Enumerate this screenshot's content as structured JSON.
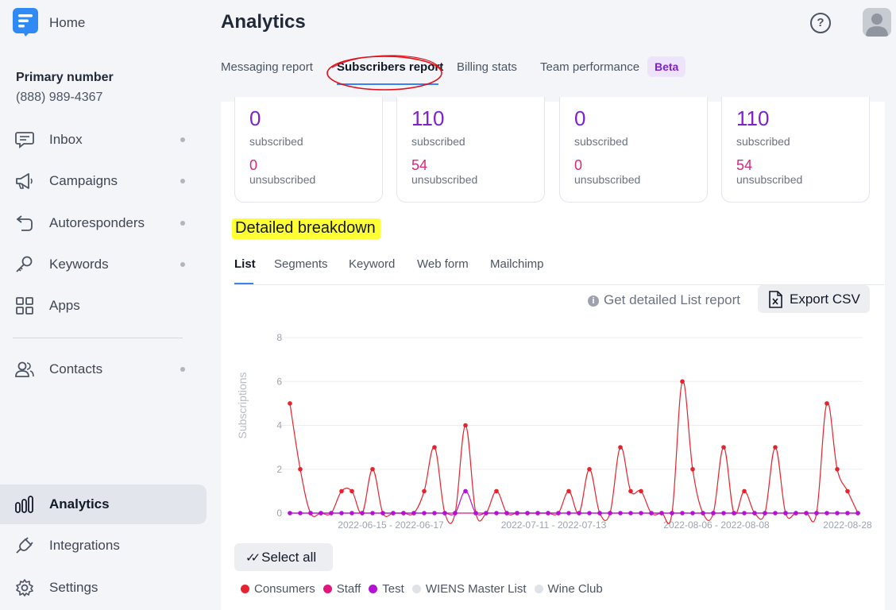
{
  "sidebar": {
    "home_label": "Home",
    "primary_number_title": "Primary number",
    "primary_number": "(888) 989-4367",
    "items": [
      {
        "label": "Inbox",
        "icon": "inbox-icon",
        "dot": true
      },
      {
        "label": "Campaigns",
        "icon": "megaphone-icon",
        "dot": true
      },
      {
        "label": "Autoresponders",
        "icon": "autoresponder-icon",
        "dot": true
      },
      {
        "label": "Keywords",
        "icon": "key-icon",
        "dot": true
      },
      {
        "label": "Apps",
        "icon": "apps-grid-icon",
        "dot": false
      },
      {
        "label": "Contacts",
        "icon": "contacts-icon",
        "dot": true
      },
      {
        "label": "Analytics",
        "icon": "analytics-icon",
        "dot": false,
        "active": true
      },
      {
        "label": "Integrations",
        "icon": "plug-icon",
        "dot": false
      },
      {
        "label": "Settings",
        "icon": "gear-icon",
        "dot": false
      }
    ]
  },
  "header": {
    "title": "Analytics",
    "help_label": "?"
  },
  "tabs": [
    {
      "label": "Messaging report"
    },
    {
      "label": "Subscribers report",
      "active": true
    },
    {
      "label": "Billing stats"
    },
    {
      "label": "Team performance"
    }
  ],
  "beta_badge": "Beta",
  "stats": [
    {
      "subscribed": "0",
      "subscribed_label": "subscribed",
      "unsubscribed": "0",
      "unsubscribed_label": "unsubscribed"
    },
    {
      "subscribed": "110",
      "subscribed_label": "subscribed",
      "unsubscribed": "54",
      "unsubscribed_label": "unsubscribed"
    },
    {
      "subscribed": "0",
      "subscribed_label": "subscribed",
      "unsubscribed": "0",
      "unsubscribed_label": "unsubscribed"
    },
    {
      "subscribed": "110",
      "subscribed_label": "subscribed",
      "unsubscribed": "54",
      "unsubscribed_label": "unsubscribed"
    }
  ],
  "breakdown_title": "Detailed breakdown",
  "subtabs": [
    {
      "label": "List",
      "active": true
    },
    {
      "label": "Segments"
    },
    {
      "label": "Keyword"
    },
    {
      "label": "Web form"
    },
    {
      "label": "Mailchimp"
    }
  ],
  "detail_link": "Get detailed List report",
  "export_label": "Export CSV",
  "select_all_label": "Select all",
  "legend": [
    {
      "name": "Consumers",
      "color": "#e5232f"
    },
    {
      "name": "Staff",
      "color": "#e0167e"
    },
    {
      "name": "Test",
      "color": "#b312d4"
    },
    {
      "name": "WIENS Master List",
      "color": "#dfe2e6"
    },
    {
      "name": "Wine Club",
      "color": "#dfe2e6"
    }
  ],
  "chart_data": {
    "type": "line",
    "ylabel": "Subscriptions",
    "ylim": [
      0,
      8
    ],
    "yticks": [
      0,
      2,
      4,
      6,
      8
    ],
    "xtick_labels": [
      "2022-06-15 - 2022-06-17",
      "2022-07-11 - 2022-07-13",
      "2022-08-06 - 2022-08-08",
      "2022-08-28"
    ],
    "grid": true,
    "series": [
      {
        "name": "Consumers",
        "color": "#e5232f",
        "values": [
          5,
          2,
          0,
          0,
          0,
          1,
          1,
          0,
          2,
          0,
          0,
          0,
          0,
          1,
          3,
          0,
          0,
          4,
          0,
          0,
          1,
          0,
          0,
          0,
          0,
          0,
          0,
          1,
          0,
          2,
          0,
          0,
          3,
          1,
          1,
          0,
          0,
          0,
          6,
          2,
          0,
          0,
          3,
          0,
          1,
          0,
          0,
          3,
          0,
          0,
          0,
          0,
          5,
          2,
          1,
          0
        ]
      },
      {
        "name": "Staff",
        "color": "#e0167e",
        "values": [
          0,
          0,
          0,
          0,
          0,
          0,
          0,
          0,
          0,
          0,
          0,
          0,
          0,
          0,
          0,
          0,
          0,
          0,
          0,
          0,
          0,
          0,
          0,
          0,
          0,
          0,
          0,
          0,
          0,
          0,
          0,
          0,
          0,
          0,
          0,
          0,
          0,
          0,
          0,
          0,
          0,
          0,
          0,
          0,
          0,
          0,
          0,
          0,
          0,
          0,
          0,
          0,
          0,
          0,
          0,
          0
        ]
      },
      {
        "name": "Test",
        "color": "#b312d4",
        "values": [
          0,
          0,
          0,
          0,
          0,
          0,
          0,
          0,
          0,
          0,
          0,
          0,
          0,
          0,
          0,
          0,
          0,
          1,
          0,
          0,
          0,
          0,
          0,
          0,
          0,
          0,
          0,
          0,
          0,
          0,
          0,
          0,
          0,
          0,
          0,
          0,
          0,
          0,
          0,
          0,
          0,
          0,
          0,
          0,
          0,
          0,
          0,
          0,
          0,
          0,
          0,
          0,
          0,
          0,
          0,
          0
        ]
      }
    ]
  }
}
